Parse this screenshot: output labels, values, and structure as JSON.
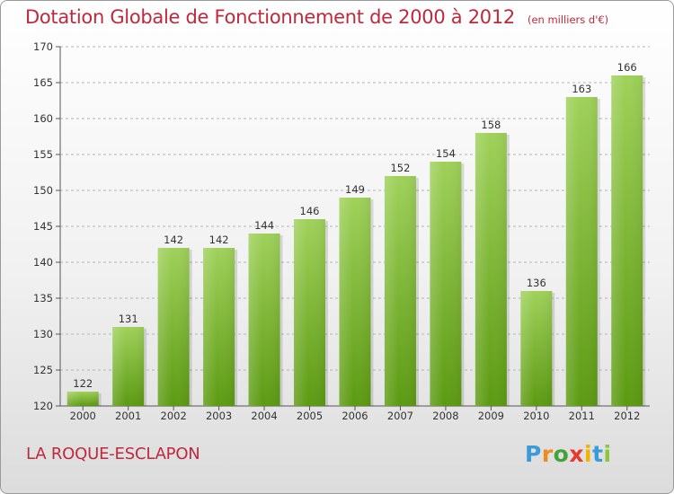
{
  "header": {
    "title": "Dotation Globale de Fonctionnement de 2000 à 2012",
    "unit": "(en milliers d'€)"
  },
  "footer": {
    "commune": "LA ROQUE-ESCLAPON",
    "logo_letters": [
      "P",
      "r",
      "o",
      "x",
      "i",
      "t",
      "i"
    ],
    "logo_colors": [
      "#3b9ad9",
      "#f08c1c",
      "#43a33a",
      "#e53a2e",
      "#f0b400",
      "#3b9ad9",
      "#8cc63f"
    ]
  },
  "chart_data": {
    "type": "bar",
    "title": "Dotation Globale de Fonctionnement de 2000 à 2012",
    "xlabel": "",
    "ylabel": "(en milliers d'€)",
    "categories": [
      "2000",
      "2001",
      "2002",
      "2003",
      "2004",
      "2005",
      "2006",
      "2007",
      "2008",
      "2009",
      "2010",
      "2011",
      "2012"
    ],
    "values": [
      122,
      131,
      142,
      142,
      144,
      146,
      149,
      152,
      154,
      158,
      136,
      163,
      166
    ],
    "ylim": [
      120,
      170
    ],
    "yticks": [
      120,
      125,
      130,
      135,
      140,
      145,
      150,
      155,
      160,
      165,
      170
    ],
    "grid": true,
    "bar_color_top": "#9fd15a",
    "bar_color_bottom": "#5c9a12"
  }
}
